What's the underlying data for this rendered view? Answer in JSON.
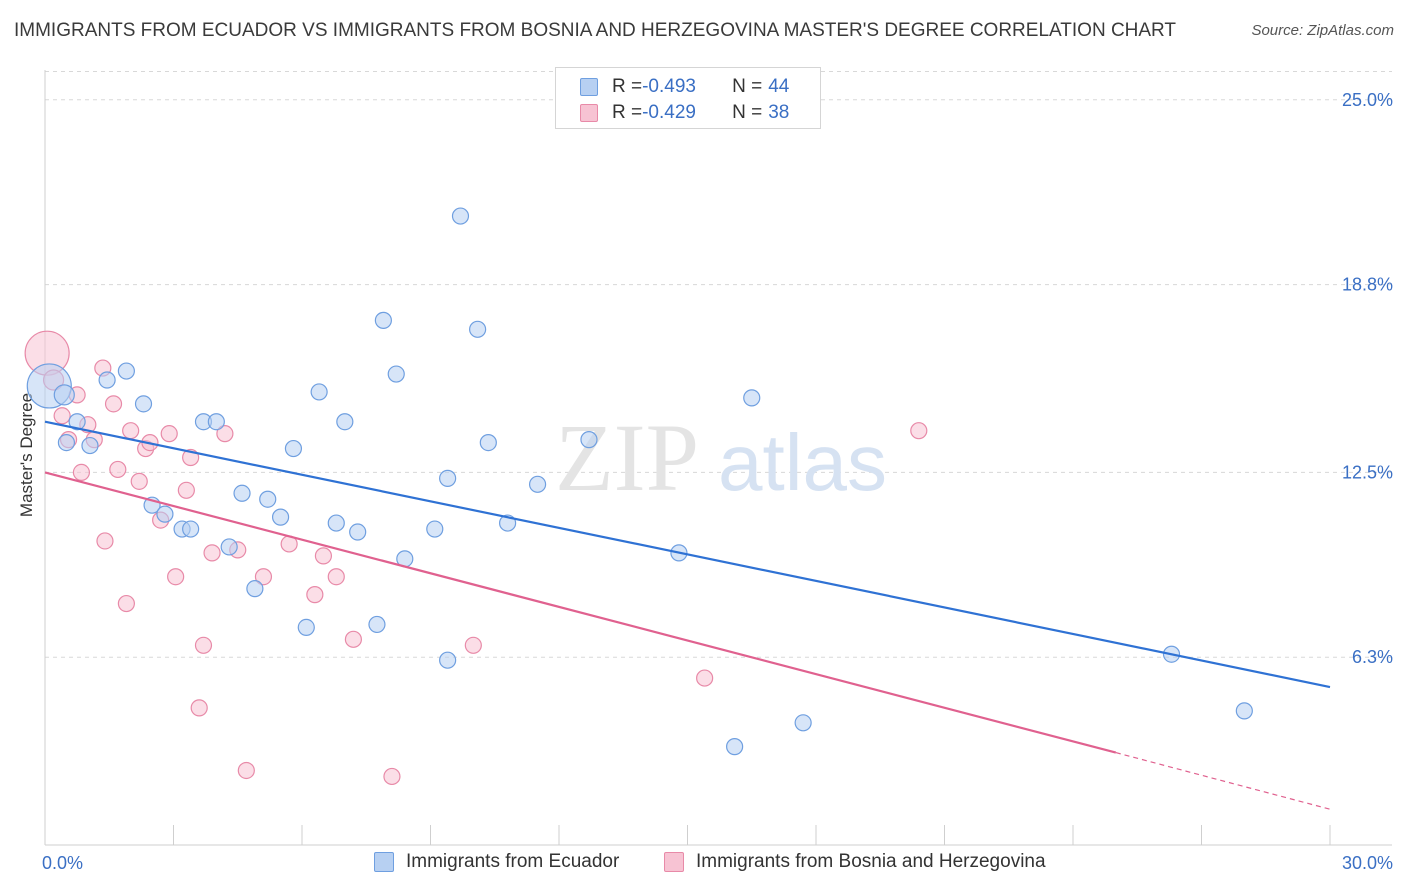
{
  "title": "IMMIGRANTS FROM ECUADOR VS IMMIGRANTS FROM BOSNIA AND HERZEGOVINA MASTER'S DEGREE CORRELATION CHART",
  "source": "Source: ZipAtlas.com",
  "watermark": {
    "zip": "ZIP",
    "atlas": "atlas"
  },
  "legend": {
    "rows": [
      {
        "r_label": "R = ",
        "r_value": "-0.493",
        "n_label": "N = ",
        "n_value": "44"
      },
      {
        "r_label": "R = ",
        "r_value": "-0.429",
        "n_label": "N = ",
        "n_value": "38"
      }
    ]
  },
  "bottom_legend": {
    "ecuador": "Immigrants from Ecuador",
    "bosnia": "Immigrants from Bosnia and Herzegovina"
  },
  "colors": {
    "blue_fill": "#b7d0f2",
    "blue_stroke": "#6f9fe0",
    "blue_line": "#2f72d4",
    "pink_fill": "#f7c3d3",
    "pink_stroke": "#e88aa8",
    "pink_line": "#e0618f",
    "grid": "#d8d8d8",
    "axis_text": "#3a6fc4"
  },
  "chart_data": {
    "type": "scatter",
    "ylabel": "Master's Degree",
    "x_tick_labels": [
      "0.0%",
      "30.0%"
    ],
    "y_tick_labels": [
      "25.0%",
      "18.8%",
      "12.5%",
      "6.3%"
    ],
    "y_ticks": [
      25.0,
      18.8,
      12.5,
      6.3
    ],
    "xlim": [
      0,
      30
    ],
    "ylim": [
      0,
      26
    ],
    "series": [
      {
        "name": "Immigrants from Ecuador",
        "color": "blue",
        "trend": {
          "x0": 0,
          "y0": 14.2,
          "x1": 30,
          "y1": 5.3
        },
        "points": [
          [
            0.1,
            15.4,
            22
          ],
          [
            0.45,
            15.1,
            10
          ],
          [
            0.75,
            14.2,
            8
          ],
          [
            1.05,
            13.4,
            8
          ],
          [
            1.45,
            15.6,
            8
          ],
          [
            1.9,
            15.9,
            8
          ],
          [
            2.3,
            14.8,
            8
          ],
          [
            2.5,
            11.4,
            8
          ],
          [
            2.8,
            11.1,
            8
          ],
          [
            3.2,
            10.6,
            8
          ],
          [
            3.4,
            10.6,
            8
          ],
          [
            3.7,
            14.2,
            8
          ],
          [
            4.0,
            14.2,
            8
          ],
          [
            4.3,
            10.0,
            8
          ],
          [
            4.6,
            11.8,
            8
          ],
          [
            4.9,
            8.6,
            8
          ],
          [
            5.2,
            11.6,
            8
          ],
          [
            5.5,
            11.0,
            8
          ],
          [
            5.8,
            13.3,
            8
          ],
          [
            6.1,
            7.3,
            8
          ],
          [
            6.4,
            15.2,
            8
          ],
          [
            6.8,
            10.8,
            8
          ],
          [
            7.0,
            14.2,
            8
          ],
          [
            7.3,
            10.5,
            8
          ],
          [
            7.75,
            7.4,
            8
          ],
          [
            7.9,
            17.6,
            8
          ],
          [
            8.2,
            15.8,
            8
          ],
          [
            8.4,
            9.6,
            8
          ],
          [
            9.1,
            10.6,
            8
          ],
          [
            9.4,
            6.2,
            8
          ],
          [
            9.4,
            12.3,
            8
          ],
          [
            9.7,
            21.1,
            8
          ],
          [
            10.1,
            17.3,
            8
          ],
          [
            10.35,
            13.5,
            8
          ],
          [
            10.8,
            10.8,
            8
          ],
          [
            11.5,
            12.1,
            8
          ],
          [
            12.7,
            13.6,
            8
          ],
          [
            14.8,
            9.8,
            8
          ],
          [
            16.1,
            3.3,
            8
          ],
          [
            16.5,
            15.0,
            8
          ],
          [
            17.7,
            4.1,
            8
          ],
          [
            26.3,
            6.4,
            8
          ],
          [
            28.0,
            4.5,
            8
          ],
          [
            0.5,
            13.5,
            8
          ]
        ]
      },
      {
        "name": "Immigrants from Bosnia and Herzegovina",
        "color": "pink",
        "trend": {
          "x0": 0,
          "y0": 12.5,
          "x1": 25.0,
          "y1": 3.1
        },
        "trend_ext": {
          "x0": 25.0,
          "y0": 3.1,
          "x1": 30,
          "y1": 1.2
        },
        "points": [
          [
            0.05,
            16.5,
            22
          ],
          [
            0.2,
            15.6,
            10
          ],
          [
            0.4,
            14.4,
            8
          ],
          [
            0.55,
            13.6,
            8
          ],
          [
            0.75,
            15.1,
            8
          ],
          [
            0.85,
            12.5,
            8
          ],
          [
            1.0,
            14.1,
            8
          ],
          [
            1.15,
            13.6,
            8
          ],
          [
            1.35,
            16.0,
            8
          ],
          [
            1.4,
            10.2,
            8
          ],
          [
            1.6,
            14.8,
            8
          ],
          [
            1.7,
            12.6,
            8
          ],
          [
            1.9,
            8.1,
            8
          ],
          [
            2.0,
            13.9,
            8
          ],
          [
            2.2,
            12.2,
            8
          ],
          [
            2.35,
            13.3,
            8
          ],
          [
            2.45,
            13.5,
            8
          ],
          [
            2.7,
            10.9,
            8
          ],
          [
            2.9,
            13.8,
            8
          ],
          [
            3.05,
            9.0,
            8
          ],
          [
            3.3,
            11.9,
            8
          ],
          [
            3.4,
            13.0,
            8
          ],
          [
            3.6,
            4.6,
            8
          ],
          [
            3.7,
            6.7,
            8
          ],
          [
            3.9,
            9.8,
            8
          ],
          [
            4.2,
            13.8,
            8
          ],
          [
            4.5,
            9.9,
            8
          ],
          [
            4.7,
            2.5,
            8
          ],
          [
            5.1,
            9.0,
            8
          ],
          [
            5.7,
            10.1,
            8
          ],
          [
            6.3,
            8.4,
            8
          ],
          [
            6.5,
            9.7,
            8
          ],
          [
            6.8,
            9.0,
            8
          ],
          [
            7.2,
            6.9,
            8
          ],
          [
            8.1,
            2.3,
            8
          ],
          [
            10.0,
            6.7,
            8
          ],
          [
            15.4,
            5.6,
            8
          ],
          [
            20.4,
            13.9,
            8
          ]
        ]
      }
    ]
  }
}
